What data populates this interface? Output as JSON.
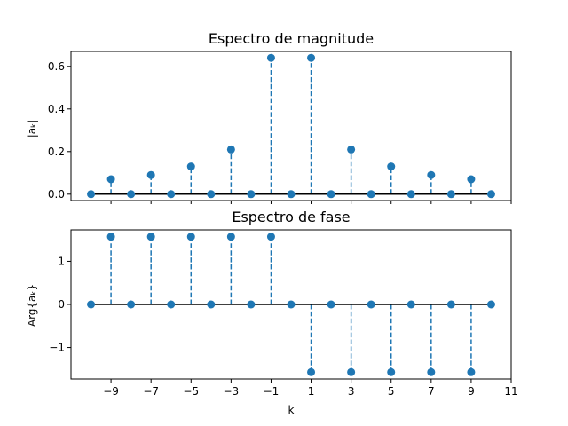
{
  "chart_data": [
    {
      "type": "stem",
      "title": "Espectro de magnitude",
      "xlabel": "",
      "ylabel": "|aₖ|",
      "x": [
        -10,
        -9,
        -8,
        -7,
        -6,
        -5,
        -4,
        -3,
        -2,
        -1,
        0,
        1,
        2,
        3,
        4,
        5,
        6,
        7,
        8,
        9,
        10
      ],
      "y": [
        0,
        0.07,
        0,
        0.09,
        0,
        0.13,
        0,
        0.21,
        0,
        0.64,
        0,
        0.64,
        0,
        0.21,
        0,
        0.13,
        0,
        0.09,
        0,
        0.07,
        0
      ],
      "xlim": [
        -11,
        11
      ],
      "ylim": [
        -0.03,
        0.67
      ],
      "yticks": [
        0.0,
        0.2,
        0.4,
        0.6
      ],
      "ytick_labels": [
        "0.0",
        "0.2",
        "0.4",
        "0.6"
      ],
      "xticks": [
        -9,
        -7,
        -5,
        -3,
        -1,
        1,
        3,
        5,
        7,
        9,
        11
      ],
      "xtick_labels": [],
      "color": "#1f77b4",
      "baseline_color": "#000000"
    },
    {
      "type": "stem",
      "title": "Espectro de fase",
      "xlabel": "k",
      "ylabel": "Arg{aₖ}",
      "x": [
        -10,
        -9,
        -8,
        -7,
        -6,
        -5,
        -4,
        -3,
        -2,
        -1,
        0,
        1,
        2,
        3,
        4,
        5,
        6,
        7,
        8,
        9,
        10
      ],
      "y": [
        0,
        1.5708,
        0,
        1.5708,
        0,
        1.5708,
        0,
        1.5708,
        0,
        1.5708,
        0,
        -1.5708,
        0,
        -1.5708,
        0,
        -1.5708,
        0,
        -1.5708,
        0,
        -1.5708,
        0
      ],
      "xlim": [
        -11,
        11
      ],
      "ylim": [
        -1.73,
        1.73
      ],
      "yticks": [
        -1,
        0,
        1
      ],
      "ytick_labels": [
        "−1",
        "0",
        "1"
      ],
      "xticks": [
        -9,
        -7,
        -5,
        -3,
        -1,
        1,
        3,
        5,
        7,
        9,
        11
      ],
      "xtick_labels": [
        "−9",
        "−7",
        "−5",
        "−3",
        "−1",
        "1",
        "3",
        "5",
        "7",
        "9",
        "11"
      ],
      "color": "#1f77b4",
      "baseline_color": "#000000"
    }
  ]
}
